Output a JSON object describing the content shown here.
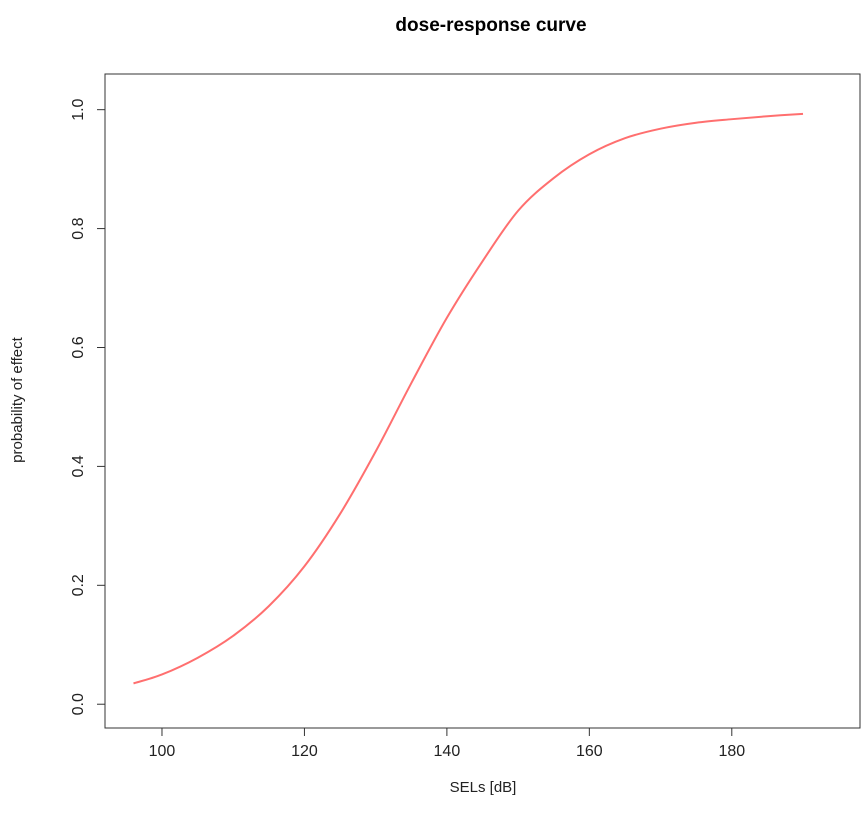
{
  "chart_data": {
    "type": "line",
    "title": "dose-response curve",
    "xlabel": "SELs [dB]",
    "ylabel": "probability of effect",
    "xlim": [
      92,
      198
    ],
    "ylim": [
      -0.04,
      1.06
    ],
    "x_ticks": [
      100,
      120,
      140,
      160,
      180
    ],
    "y_ticks": [
      0.0,
      0.2,
      0.4,
      0.6,
      0.8,
      1.0
    ],
    "x_tick_labels": [
      "100",
      "120",
      "140",
      "160",
      "180"
    ],
    "y_tick_labels": [
      "0.0",
      "0.2",
      "0.4",
      "0.6",
      "0.8",
      "1.0"
    ],
    "grid": false,
    "series": [
      {
        "color": "#ff6f6f",
        "x": [
          96,
          100,
          105,
          110,
          115,
          120,
          125,
          130,
          135,
          140,
          145,
          150,
          155,
          160,
          165,
          170,
          175,
          180,
          185,
          190
        ],
        "y": [
          0.035,
          0.05,
          0.078,
          0.115,
          0.165,
          0.232,
          0.32,
          0.425,
          0.54,
          0.65,
          0.745,
          0.83,
          0.885,
          0.925,
          0.952,
          0.968,
          0.978,
          0.984,
          0.989,
          0.993
        ]
      }
    ]
  }
}
